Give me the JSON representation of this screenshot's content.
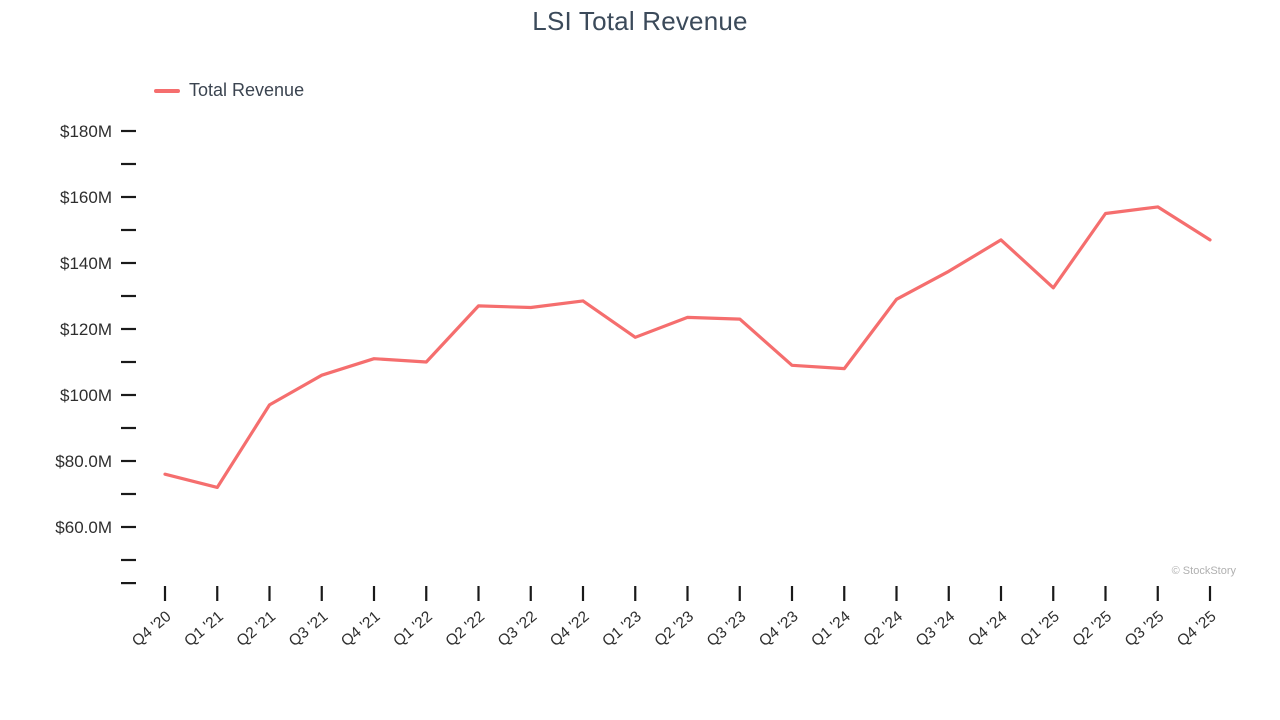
{
  "chart_data": {
    "type": "line",
    "title": "LSI Total Revenue",
    "xlabel": "",
    "ylabel": "",
    "watermark": "© StockStory",
    "legend": [
      {
        "label": "Total Revenue",
        "color": "#f56e6e"
      }
    ],
    "categories": [
      "Q4 '20",
      "Q1 '21",
      "Q2 '21",
      "Q3 '21",
      "Q4 '21",
      "Q1 '22",
      "Q2 '22",
      "Q3 '22",
      "Q4 '22",
      "Q1 '23",
      "Q2 '23",
      "Q3 '23",
      "Q4 '23",
      "Q1 '24",
      "Q2 '24",
      "Q3 '24",
      "Q4 '24",
      "Q1 '25",
      "Q2 '25",
      "Q3 '25",
      "Q4 '25"
    ],
    "series": [
      {
        "name": "Total Revenue",
        "unit": "USD millions",
        "color": "#f56e6e",
        "values": [
          76,
          72,
          97,
          106,
          111,
          110,
          127,
          126.5,
          128.5,
          117.5,
          123.5,
          123,
          109,
          108,
          129,
          137.5,
          147,
          132.5,
          155,
          157,
          147
        ]
      }
    ],
    "yaxis": {
      "range": [
        43,
        183
      ],
      "ticks_major": [
        {
          "value": 180,
          "label": "$180M"
        },
        {
          "value": 160,
          "label": "$160M"
        },
        {
          "value": 140,
          "label": "$140M"
        },
        {
          "value": 120,
          "label": "$120M"
        },
        {
          "value": 100,
          "label": "$100M"
        },
        {
          "value": 80,
          "label": "$80.0M"
        },
        {
          "value": 60,
          "label": "$60.0M"
        }
      ],
      "ticks_minor": [
        170,
        150,
        130,
        110,
        90,
        70,
        50,
        43
      ]
    },
    "layout": {
      "grid": false,
      "legend_position": "top-left",
      "x_label_rotation": -40
    },
    "colors": {
      "line": "#f56e6e",
      "title_text": "#3b4a5a",
      "axis_text": "#2e2e2e",
      "tick": "#1a1a1a",
      "watermark": "#b0b0b0"
    }
  }
}
